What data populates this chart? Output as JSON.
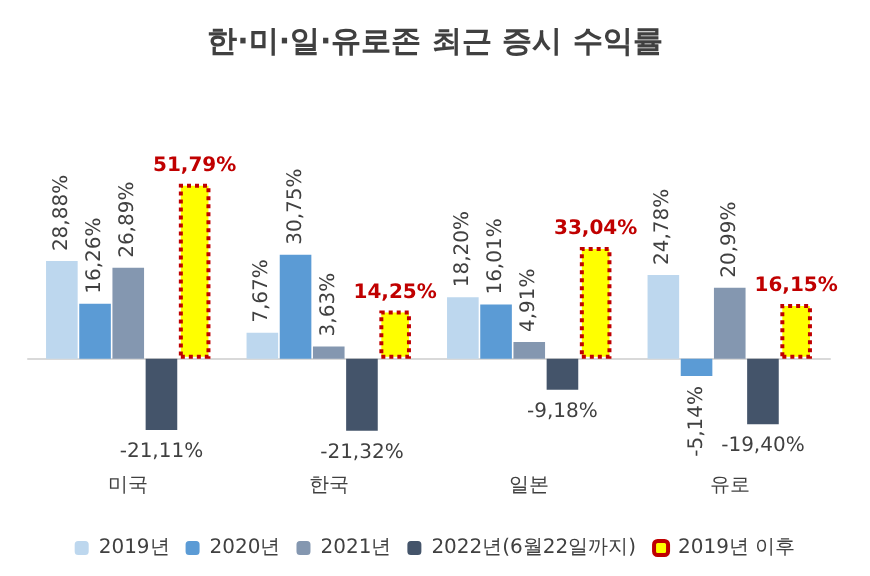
{
  "chart_data": {
    "type": "bar",
    "title": "한·미·일·유로존 최근 증시 수익률",
    "categories": [
      "미국",
      "한국",
      "일본",
      "유로"
    ],
    "series": [
      {
        "name": "2019년",
        "color": "#bdd7ee",
        "values": [
          28.88,
          7.67,
          18.2,
          24.78
        ],
        "value_labels": [
          "28,88%",
          "7,67%",
          "18,20%",
          "24,78%"
        ]
      },
      {
        "name": "2020년",
        "color": "#5b9bd5",
        "values": [
          16.26,
          30.75,
          16.01,
          -5.14
        ],
        "value_labels": [
          "16,26%",
          "30,75%",
          "16,01%",
          "-5,14%"
        ]
      },
      {
        "name": "2021년",
        "color": "#8497b0",
        "values": [
          26.89,
          3.63,
          4.91,
          20.99
        ],
        "value_labels": [
          "26,89%",
          "3,63%",
          "4,91%",
          "20,99%"
        ]
      },
      {
        "name": "2022년(6월22일까지)",
        "color": "#44546a",
        "values": [
          -21.11,
          -21.32,
          -9.18,
          -19.4
        ],
        "value_labels": [
          "-21,11%",
          "-21,32%",
          "-9,18%",
          "-19,40%"
        ]
      },
      {
        "name": "2019년 이후",
        "color": "#ffff00",
        "values": [
          51.79,
          14.25,
          33.04,
          16.15
        ],
        "value_labels": [
          "51,79%",
          "14,25%",
          "33,04%",
          "16,15%"
        ]
      }
    ],
    "legend": "bottom"
  }
}
